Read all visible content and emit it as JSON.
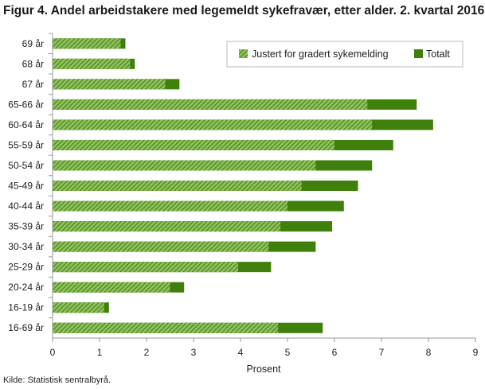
{
  "title": "Figur 4. Andel arbeidstakere med legemeldt sykefravær, etter alder. 2. kvartal 2016",
  "source": "Kilde: Statistisk sentralbyrå.",
  "colors": {
    "totalt": "#3f7f0b",
    "justert": "#6aa334",
    "axis": "#999999"
  },
  "chart_data": {
    "type": "bar",
    "orientation": "horizontal",
    "categories": [
      "69 år",
      "68 år",
      "67 år",
      "65-66 år",
      "60-64 år",
      "55-59 år",
      "50-54 år",
      "45-49 år",
      "40-44 år",
      "35-39 år",
      "30-34 år",
      "25-29 år",
      "20-24 år",
      "16-19 år",
      "16-69 år"
    ],
    "series": [
      {
        "name": "Justert for gradert sykemelding",
        "values": [
          1.45,
          1.65,
          2.4,
          6.7,
          6.8,
          6.0,
          5.6,
          5.3,
          5.0,
          4.85,
          4.6,
          3.95,
          2.5,
          1.1,
          4.8
        ]
      },
      {
        "name": "Totalt",
        "values": [
          1.55,
          1.75,
          2.7,
          7.75,
          8.1,
          7.25,
          6.8,
          6.5,
          6.2,
          5.95,
          5.6,
          4.65,
          2.8,
          1.2,
          5.75
        ]
      }
    ],
    "xlabel": "Prosent",
    "xlim": [
      0,
      9
    ],
    "xticks": [
      0,
      1,
      2,
      3,
      4,
      5,
      6,
      7,
      8,
      9
    ],
    "grid": false,
    "legend_position": "top-right",
    "overlay": true
  }
}
